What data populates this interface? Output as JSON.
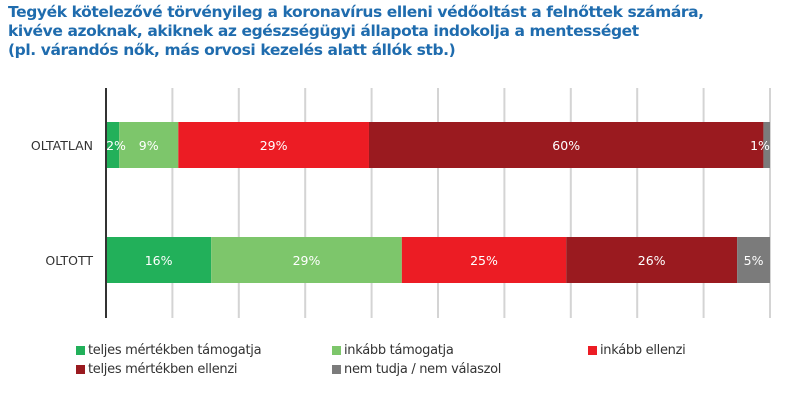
{
  "chart_data": {
    "type": "bar",
    "orientation": "horizontal",
    "stacked": true,
    "title": [
      "Tegyék kötelezővé törvényileg a koronavírus elleni védőoltást a felnőttek számára,",
      "kivéve azoknak, akiknek az egészségügyi állapota indokolja a mentességet",
      "(pl. várandós nők, más orvosi kezelés alatt állók stb.)"
    ],
    "categories": [
      "OLTATLAN",
      "OLTOTT"
    ],
    "series": [
      {
        "name": "teljes mértékben támogatja",
        "color": "#22b05a",
        "values": [
          2,
          16
        ]
      },
      {
        "name": "inkább támogatja",
        "color": "#7dc66b",
        "values": [
          9,
          29
        ]
      },
      {
        "name": "inkább ellenzi",
        "color": "#ec1c24",
        "values": [
          29,
          25
        ]
      },
      {
        "name": "teljes mértékben ellenzi",
        "color": "#9a1a1f",
        "values": [
          60,
          26
        ]
      },
      {
        "name": "nem tudja / nem válaszol",
        "color": "#7b7b7b",
        "values": [
          1,
          5
        ]
      }
    ],
    "value_suffix": "%",
    "xlim": [
      0,
      100
    ],
    "grid": true,
    "legend_position": "bottom",
    "title_color": "#1f6cae"
  }
}
